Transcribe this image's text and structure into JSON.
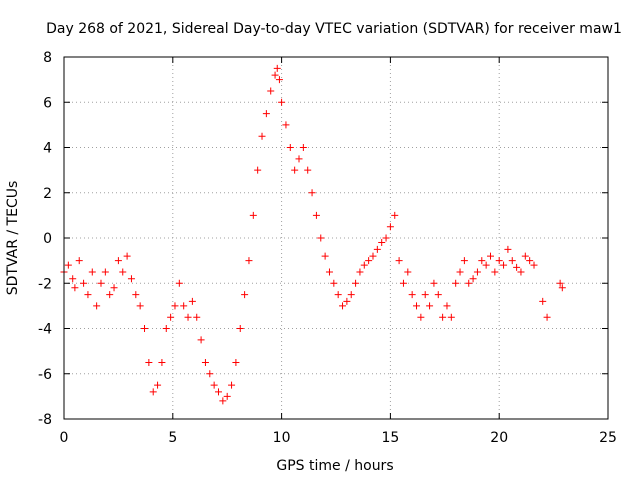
{
  "chart_data": {
    "type": "scatter",
    "title": "Day 268 of 2021, Sidereal Day-to-day VTEC variation (SDTVAR) for receiver maw1",
    "xlabel": "GPS time / hours",
    "ylabel": "SDTVAR / TECUs",
    "xlim": [
      0,
      25
    ],
    "ylim": [
      -8,
      8
    ],
    "xticks": [
      0,
      5,
      10,
      15,
      20,
      25
    ],
    "yticks": [
      -8,
      -6,
      -4,
      -2,
      0,
      2,
      4,
      6,
      8
    ],
    "grid": true,
    "marker": "+",
    "color": "#ff0000",
    "series": [
      {
        "name": "SDTVAR",
        "x": [
          0.0,
          0.2,
          0.4,
          0.5,
          0.7,
          0.9,
          1.1,
          1.3,
          1.5,
          1.7,
          1.9,
          2.1,
          2.3,
          2.5,
          2.7,
          2.9,
          3.1,
          3.3,
          3.5,
          3.7,
          3.9,
          4.1,
          4.3,
          4.5,
          4.7,
          4.9,
          5.1,
          5.3,
          5.5,
          5.7,
          5.9,
          6.1,
          6.3,
          6.5,
          6.7,
          6.9,
          7.1,
          7.3,
          7.5,
          7.7,
          7.9,
          8.1,
          8.3,
          8.5,
          8.7,
          8.9,
          9.1,
          9.3,
          9.5,
          9.7,
          9.8,
          9.9,
          10.0,
          10.2,
          10.4,
          10.6,
          10.8,
          11.0,
          11.2,
          11.4,
          11.6,
          11.8,
          12.0,
          12.2,
          12.4,
          12.6,
          12.8,
          13.0,
          13.2,
          13.4,
          13.6,
          13.8,
          14.0,
          14.2,
          14.4,
          14.6,
          14.8,
          15.0,
          15.2,
          15.4,
          15.6,
          15.8,
          16.0,
          16.2,
          16.4,
          16.6,
          16.8,
          17.0,
          17.2,
          17.4,
          17.6,
          17.8,
          18.0,
          18.2,
          18.4,
          18.6,
          18.8,
          19.0,
          19.2,
          19.4,
          19.6,
          19.8,
          20.0,
          20.2,
          20.4,
          20.6,
          20.8,
          21.0,
          21.2,
          21.4,
          21.6,
          22.0,
          22.2,
          22.8,
          22.9
        ],
        "y": [
          -1.5,
          -1.2,
          -1.8,
          -2.2,
          -1.0,
          -2.0,
          -2.5,
          -1.5,
          -3.0,
          -2.0,
          -1.5,
          -2.5,
          -2.2,
          -1.0,
          -1.5,
          -0.8,
          -1.8,
          -2.5,
          -3.0,
          -4.0,
          -5.5,
          -6.8,
          -6.5,
          -5.5,
          -4.0,
          -3.5,
          -3.0,
          -2.0,
          -3.0,
          -3.5,
          -2.8,
          -3.5,
          -4.5,
          -5.5,
          -6.0,
          -6.5,
          -6.8,
          -7.2,
          -7.0,
          -6.5,
          -5.5,
          -4.0,
          -2.5,
          -1.0,
          1.0,
          3.0,
          4.5,
          5.5,
          6.5,
          7.2,
          7.5,
          7.0,
          6.0,
          5.0,
          4.0,
          3.0,
          3.5,
          4.0,
          3.0,
          2.0,
          1.0,
          0.0,
          -0.8,
          -1.5,
          -2.0,
          -2.5,
          -3.0,
          -2.8,
          -2.5,
          -2.0,
          -1.5,
          -1.2,
          -1.0,
          -0.8,
          -0.5,
          -0.2,
          0.0,
          0.5,
          1.0,
          -1.0,
          -2.0,
          -1.5,
          -2.5,
          -3.0,
          -3.5,
          -2.5,
          -3.0,
          -2.0,
          -2.5,
          -3.5,
          -3.0,
          -3.5,
          -2.0,
          -1.5,
          -1.0,
          -2.0,
          -1.8,
          -1.5,
          -1.0,
          -1.2,
          -0.8,
          -1.5,
          -1.0,
          -1.2,
          -0.5,
          -1.0,
          -1.3,
          -1.5,
          -0.8,
          -1.0,
          -1.2,
          -2.8,
          -3.5,
          -2.0,
          -2.2
        ]
      }
    ]
  }
}
